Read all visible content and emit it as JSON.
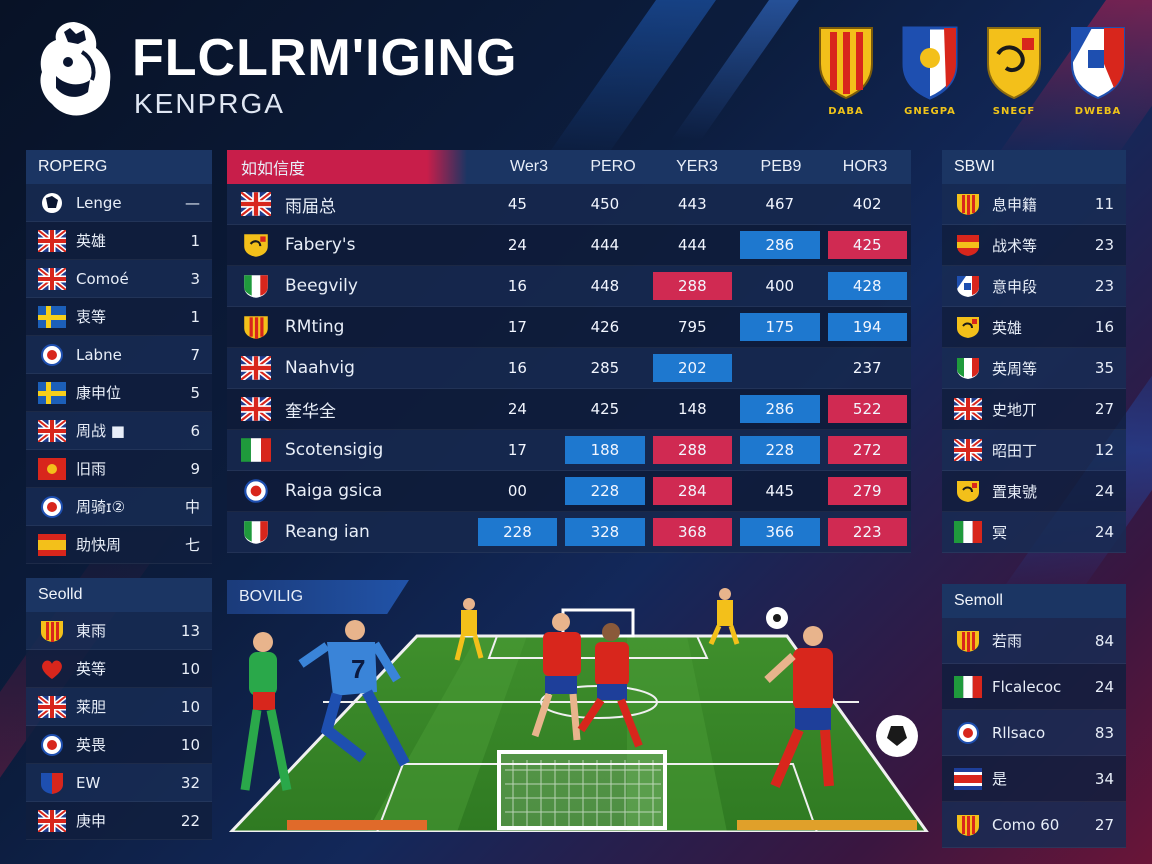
{
  "header": {
    "title": "FLCLRM'IGING",
    "subtitle": "KENPRGA",
    "crests": [
      {
        "label": "DABA",
        "colors": [
          "#f3c01a",
          "#d8261c"
        ]
      },
      {
        "label": "GNEGPA",
        "colors": [
          "#ffffff",
          "#1e4fb0",
          "#d8261c"
        ]
      },
      {
        "label": "SNEGF",
        "colors": [
          "#f3c01a",
          "#d8261c"
        ]
      },
      {
        "label": "DWEBA",
        "colors": [
          "#1e4fb0",
          "#ffffff",
          "#d8261c"
        ]
      }
    ]
  },
  "left_top": {
    "title": "ROPERG",
    "rows": [
      {
        "name": "Lenge",
        "value": "—",
        "icon": "lion-crest-icon"
      },
      {
        "name": "英雄",
        "value": "1",
        "icon": "union-jack-icon"
      },
      {
        "name": "Comoé",
        "value": "3",
        "icon": "union-jack-icon"
      },
      {
        "name": "衷等",
        "value": "1",
        "icon": "sweden-flag-icon"
      },
      {
        "name": "Labne",
        "value": "7",
        "icon": "round-crest-icon"
      },
      {
        "name": "康申位",
        "value": "5",
        "icon": "sweden-flag-icon"
      },
      {
        "name": "周战 ■",
        "value": "6",
        "icon": "union-jack-icon"
      },
      {
        "name": "旧雨",
        "value": "9",
        "icon": "red-flag-icon"
      },
      {
        "name": "周骑ɪ②",
        "value": "中",
        "icon": "round-crest-icon"
      },
      {
        "name": "助快周",
        "value": "七",
        "icon": "spain-flag-icon"
      }
    ]
  },
  "left_bottom": {
    "title": "Seolld",
    "rows": [
      {
        "name": "東雨",
        "value": "13",
        "icon": "striped-shield-icon"
      },
      {
        "name": "英等",
        "value": "10",
        "icon": "heart-crest-icon"
      },
      {
        "name": "莱胆",
        "value": "10",
        "icon": "union-jack-icon"
      },
      {
        "name": "英畏",
        "value": "10",
        "icon": "round-crest-icon"
      },
      {
        "name": "EW",
        "value": "32",
        "icon": "shield-icon"
      },
      {
        "name": "庚申",
        "value": "22",
        "icon": "union-jack-icon"
      }
    ]
  },
  "center": {
    "title": "如如信度",
    "columns": [
      "Wer3",
      "PERO",
      "YER3",
      "PEB9",
      "HOR3"
    ],
    "rows": [
      {
        "team": "雨届总",
        "icon": "union-jack-icon",
        "cells": [
          {
            "v": "45",
            "c": ""
          },
          {
            "v": "450",
            "c": ""
          },
          {
            "v": "443",
            "c": ""
          },
          {
            "v": "467",
            "c": ""
          },
          {
            "v": "402",
            "c": ""
          }
        ]
      },
      {
        "team": "Fabery's",
        "icon": "yellow-shield-icon",
        "cells": [
          {
            "v": "24",
            "c": ""
          },
          {
            "v": "444",
            "c": ""
          },
          {
            "v": "444",
            "c": ""
          },
          {
            "v": "286",
            "c": "blue"
          },
          {
            "v": "425",
            "c": "red"
          }
        ]
      },
      {
        "team": "Beegvily",
        "icon": "italy-shield-icon",
        "cells": [
          {
            "v": "16",
            "c": ""
          },
          {
            "v": "448",
            "c": ""
          },
          {
            "v": "288",
            "c": "red"
          },
          {
            "v": "400",
            "c": ""
          },
          {
            "v": "428",
            "c": "blue"
          }
        ]
      },
      {
        "team": "RMting",
        "icon": "striped-shield-icon",
        "cells": [
          {
            "v": "17",
            "c": ""
          },
          {
            "v": "426",
            "c": ""
          },
          {
            "v": "795",
            "c": ""
          },
          {
            "v": "175",
            "c": "blue"
          },
          {
            "v": "194",
            "c": "blue"
          }
        ]
      },
      {
        "team": "Naahvig",
        "icon": "union-jack-icon",
        "cells": [
          {
            "v": "16",
            "c": ""
          },
          {
            "v": "285",
            "c": ""
          },
          {
            "v": "202",
            "c": "blue"
          },
          {
            "v": "",
            "c": ""
          },
          {
            "v": "237",
            "c": ""
          }
        ]
      },
      {
        "team": "奎华全",
        "icon": "union-jack-icon",
        "cells": [
          {
            "v": "24",
            "c": ""
          },
          {
            "v": "425",
            "c": ""
          },
          {
            "v": "148",
            "c": ""
          },
          {
            "v": "286",
            "c": "blue"
          },
          {
            "v": "522",
            "c": "red"
          }
        ]
      },
      {
        "team": "Scotensigig",
        "icon": "italy-flag-icon",
        "cells": [
          {
            "v": "17",
            "c": ""
          },
          {
            "v": "188",
            "c": "blue"
          },
          {
            "v": "288",
            "c": "red"
          },
          {
            "v": "228",
            "c": "blue"
          },
          {
            "v": "272",
            "c": "red"
          }
        ]
      },
      {
        "team": "Raiga gsica",
        "icon": "round-crest-icon",
        "cells": [
          {
            "v": "00",
            "c": ""
          },
          {
            "v": "228",
            "c": "blue"
          },
          {
            "v": "284",
            "c": "red"
          },
          {
            "v": "445",
            "c": ""
          },
          {
            "v": "279",
            "c": "red"
          }
        ]
      },
      {
        "team": "Reang ian",
        "icon": "italy-shield-icon",
        "cells": [
          {
            "v": "228",
            "c": "blue"
          },
          {
            "v": "328",
            "c": "blue"
          },
          {
            "v": "368",
            "c": "red"
          },
          {
            "v": "366",
            "c": "blue"
          },
          {
            "v": "223",
            "c": "red"
          }
        ]
      }
    ]
  },
  "right_top": {
    "title": "SBWI",
    "rows": [
      {
        "name": "息申籍",
        "value": "11",
        "icon": "striped-shield-icon"
      },
      {
        "name": "战术等",
        "value": "23",
        "icon": "spain-shield-icon"
      },
      {
        "name": "意申段",
        "value": "23",
        "icon": "blue-red-shield-icon"
      },
      {
        "name": "英雄",
        "value": "16",
        "icon": "yellow-shield-icon"
      },
      {
        "name": "英周等",
        "value": "35",
        "icon": "italy-shield-icon"
      },
      {
        "name": "史地丌",
        "value": "27",
        "icon": "union-jack-icon"
      },
      {
        "name": "昭田丁",
        "value": "12",
        "icon": "union-jack-icon"
      },
      {
        "name": "置東號",
        "value": "24",
        "icon": "yellow-shield-icon"
      },
      {
        "name": "冥",
        "value": "24",
        "icon": "italy-flag-icon"
      }
    ]
  },
  "right_bottom": {
    "title": "Semoll",
    "rows": [
      {
        "name": "若雨",
        "value": "84",
        "icon": "striped-shield-icon"
      },
      {
        "name": "Flcalecoc",
        "value": "24",
        "icon": "italy-flag-icon"
      },
      {
        "name": "Rllsaco",
        "value": "83",
        "icon": "round-crest-icon"
      },
      {
        "name": "是",
        "value": "34",
        "icon": "costa-rica-flag-icon"
      },
      {
        "name": "Como 60",
        "value": "27",
        "icon": "striped-shield-icon"
      }
    ]
  },
  "pitch": {
    "title": "BOVILIG",
    "player_number": "7"
  }
}
